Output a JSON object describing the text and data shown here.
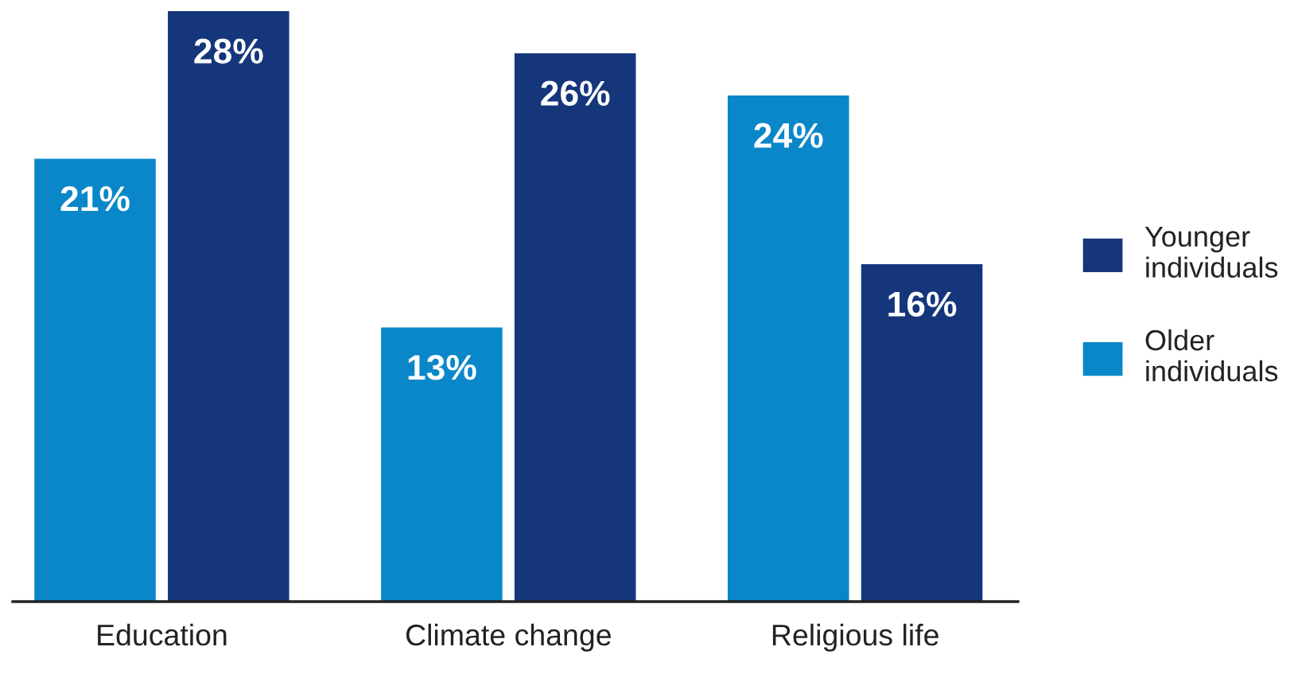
{
  "chart_data": {
    "type": "bar",
    "categories": [
      "Education",
      "Climate change",
      "Religious life"
    ],
    "series": [
      {
        "name": "Older individuals",
        "color": "#0a87c8",
        "values": [
          21,
          13,
          24
        ],
        "value_labels": [
          "21%",
          "13%",
          "24%"
        ]
      },
      {
        "name": "Younger individuals",
        "color": "#15367b",
        "values": [
          28,
          26,
          16
        ],
        "value_labels": [
          "28%",
          "26%",
          "16%"
        ]
      }
    ],
    "ylim": [
      0,
      28
    ],
    "legend": "right",
    "grid": false
  }
}
